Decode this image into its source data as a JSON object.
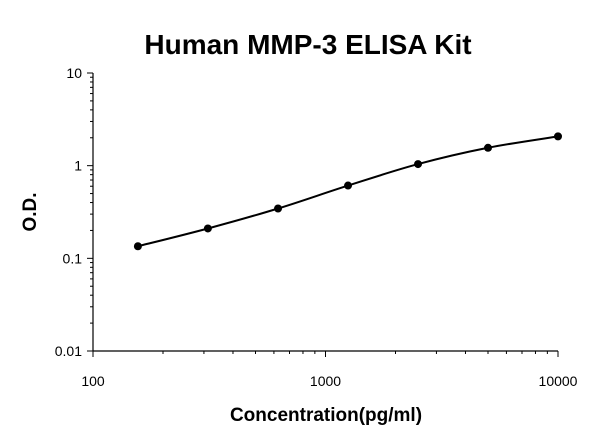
{
  "chart_data": {
    "type": "line",
    "title": "Human MMP-3 ELISA Kit",
    "xlabel": "Concentration(pg/ml)",
    "ylabel": "O.D.",
    "x_scale": "log",
    "y_scale": "log",
    "xlim": [
      100,
      10000
    ],
    "ylim": [
      0.01,
      10
    ],
    "x_ticks": [
      100,
      1000,
      10000
    ],
    "x_tick_labels": [
      "100",
      "1000",
      "10000"
    ],
    "y_ticks": [
      0.01,
      0.1,
      1,
      10
    ],
    "y_tick_labels": [
      "0.01",
      "0.1",
      "1",
      "10"
    ],
    "grid": false,
    "legend": "none",
    "series": [
      {
        "x": [
          156,
          312,
          625,
          1250,
          2500,
          5000,
          10000
        ],
        "y": [
          0.135,
          0.21,
          0.345,
          0.61,
          1.04,
          1.56,
          2.07
        ],
        "color": "#000000",
        "marker": "circle"
      }
    ]
  }
}
